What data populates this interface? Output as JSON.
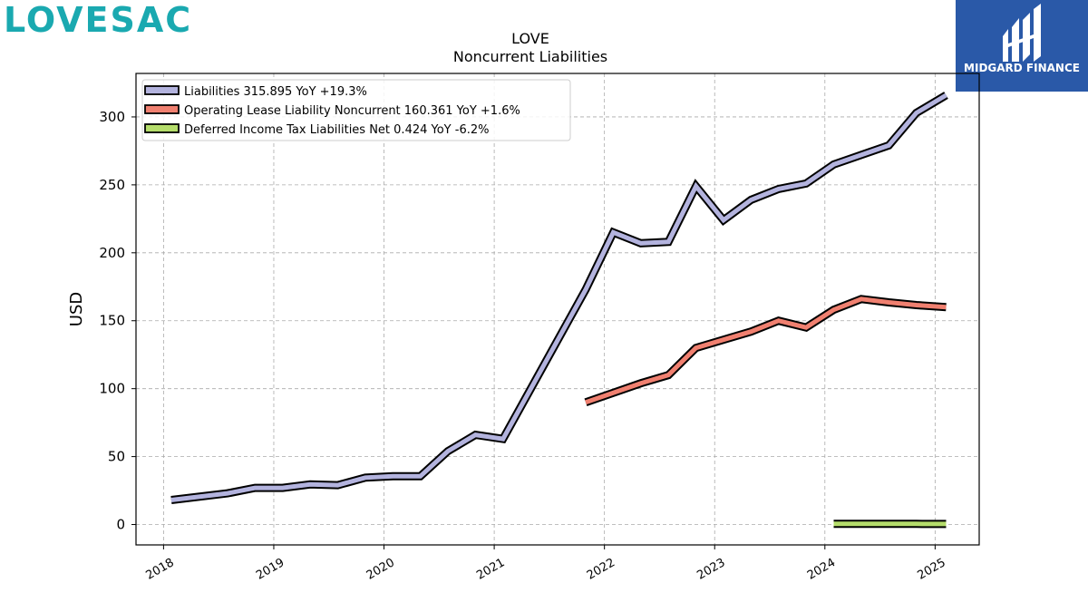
{
  "brand": {
    "left_logo_text": "LOVESAC",
    "left_logo_color": "#1aa9b0",
    "right_logo_text": "MIDGARD FINANCE",
    "right_logo_bg": "#2a59a8"
  },
  "chart_data": {
    "type": "line",
    "title": "LOVE",
    "subtitle": "Noncurrent  Liabilities",
    "xlabel": "",
    "ylabel": "USD",
    "xlim": [
      2017.75,
      2025.4
    ],
    "ylim": [
      -15,
      332
    ],
    "grid": true,
    "legend_position": "top-left",
    "xticks": [
      2018,
      2019,
      2020,
      2021,
      2022,
      2023,
      2024,
      2025
    ],
    "xtick_labels": [
      "2018",
      "2019",
      "2020",
      "2021",
      "2022",
      "2023",
      "2024",
      "2025"
    ],
    "yticks": [
      0,
      50,
      100,
      150,
      200,
      250,
      300
    ],
    "ytick_labels": [
      "0",
      "50",
      "100",
      "150",
      "200",
      "250",
      "300"
    ],
    "series": [
      {
        "name": "Liabilities  315.895 YoY +19.3%",
        "color": "#b3b3de",
        "x": [
          2018.07,
          2018.58,
          2018.83,
          2019.08,
          2019.33,
          2019.58,
          2019.83,
          2020.08,
          2020.33,
          2020.58,
          2020.83,
          2021.08,
          2021.83,
          2022.08,
          2022.33,
          2022.58,
          2022.83,
          2023.08,
          2023.33,
          2023.58,
          2023.83,
          2024.08,
          2024.33,
          2024.58,
          2024.83,
          2025.1
        ],
        "values": [
          18,
          23,
          27,
          27,
          29.5,
          29,
          34.5,
          35.5,
          35.5,
          54,
          66,
          63,
          173,
          215,
          207,
          208,
          249,
          224,
          239,
          247,
          251,
          265,
          272,
          279,
          303,
          316
        ]
      },
      {
        "name": "Operating Lease Liability Noncurrent  160.361 YoY +1.6%",
        "color": "#f08070",
        "x": [
          2021.83,
          2022.08,
          2022.33,
          2022.58,
          2022.83,
          2023.08,
          2023.33,
          2023.58,
          2023.83,
          2024.08,
          2024.33,
          2024.58,
          2024.83,
          2025.1
        ],
        "values": [
          90,
          97,
          104,
          110,
          130,
          136,
          142,
          150,
          145,
          158,
          166,
          163.5,
          161.5,
          160
        ]
      },
      {
        "name": "Deferred Income Tax Liabilities Net  0.424 YoY -6.2%",
        "color": "#b5dd6b",
        "x": [
          2024.08,
          2024.33,
          2024.58,
          2024.83,
          2025.1
        ],
        "values": [
          0.45,
          0.45,
          0.45,
          0.45,
          0.42
        ]
      }
    ]
  }
}
